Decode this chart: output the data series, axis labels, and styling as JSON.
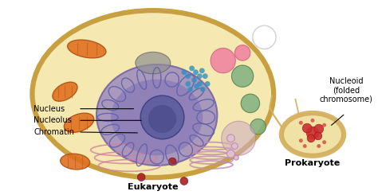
{
  "background_color": "#ffffff",
  "eukaryote_label": "Eukaryote",
  "prokaryote_label": "Prokaryote",
  "nucleus_label": "Nucleus",
  "nucleolus_label": "Nucleolus",
  "chromatin_label": "Chromatin",
  "nucleoid_label": "Nucleoid\n(folded\nchromosome)",
  "cell_outer_edge": "#c8a040",
  "cell_inner_bg": "#f5e8b0",
  "nucleus_outer_color": "#9b8bbf",
  "nucleolus_color": "#6060a0",
  "nucleolus_inner_color": "#505090",
  "nucleolus_edge": "#404080",
  "chromatin_edge": "#6060aa",
  "mitochondria_color": "#e07020",
  "mitochondria_edge": "#b05010",
  "ribosome_color": "#3090c0",
  "vesicle_green": "#80b080",
  "vesicle_green_edge": "#508050",
  "vesicle_pink_large": "#d0b0c0",
  "vesicle_pink": "#f080a0",
  "vesicle_pink_edge": "#d06080",
  "vesicle_darkred": "#aa2020",
  "vesicle_darkred_edge": "#801010",
  "gray_blob": "#909090",
  "gray_blob_edge": "#606060",
  "golgi_edge": "#c090b0",
  "golgi_vesicle": "#e0c0d0",
  "er_edge": "#d080a0",
  "prokaryote_outer": "#d4b060",
  "prokaryote_inner": "#f0e0a0",
  "prokaryote_nucleoid": "#cc3030",
  "prokaryote_nucleoid_edge": "#aa1010",
  "label_font_size": 7,
  "title_font_size": 8
}
